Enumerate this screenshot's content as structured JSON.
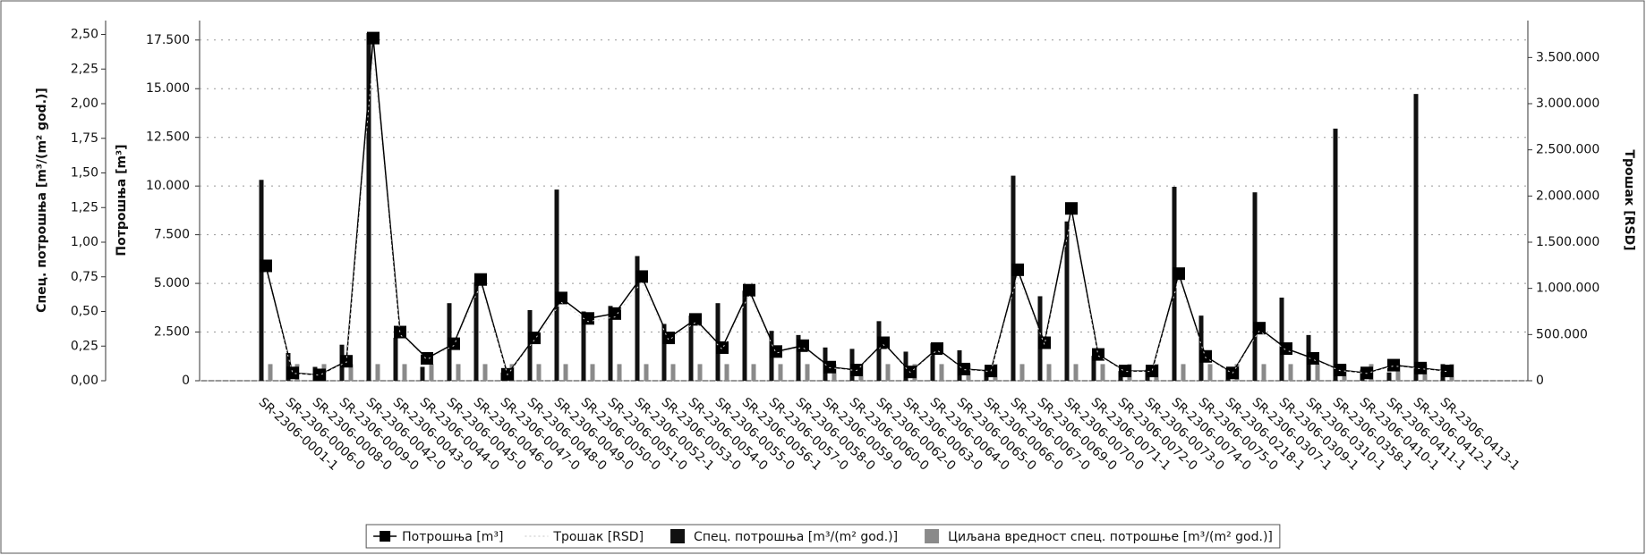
{
  "chart_data": {
    "type": "combo",
    "ylabel": "Потрошња [m³]",
    "y2label": "Трошак [RSD]",
    "y3label": "Спец. потрошња [m³/(m² god.)]",
    "categories": [
      "SR-2306-0001-1",
      "SR-2306-0006-0",
      "SR-2306-0008-0",
      "SR-2306-0009-0",
      "SR-2306-0042-0",
      "SR-2306-0043-0",
      "SR-2306-0044-0",
      "SR-2306-0045-0",
      "SR-2306-0046-0",
      "SR-2306-0047-0",
      "SR-2306-0048-0",
      "SR-2306-0049-0",
      "SR-2306-0050-0",
      "SR-2306-0051-0",
      "SR-2306-0052-1",
      "SR-2306-0053-0",
      "SR-2306-0054-0",
      "SR-2306-0055-0",
      "SR-2306-0056-1",
      "SR-2306-0057-0",
      "SR-2306-0058-0",
      "SR-2306-0059-0",
      "SR-2306-0060-0",
      "SR-2306-0062-0",
      "SR-2306-0063-0",
      "SR-2306-0064-0",
      "SR-2306-0065-0",
      "SR-2306-0066-0",
      "SR-2306-0067-0",
      "SR-2306-0069-0",
      "SR-2306-0070-0",
      "SR-2306-0071-1",
      "SR-2306-0072-0",
      "SR-2306-0073-0",
      "SR-2306-0074-0",
      "SR-2306-0075-0",
      "SR-2306-0218-1",
      "SR-2306-0307-1",
      "SR-2306-0309-1",
      "SR-2306-0310-1",
      "SR-2306-0358-1",
      "SR-2306-0410-1",
      "SR-2306-0411-1",
      "SR-2306-0412-1",
      "SR-2306-0413-1"
    ],
    "series": [
      {
        "name": "Потрошња [m³]",
        "color": "#000000",
        "style": "line",
        "axis": "y",
        "values": [
          5900,
          400,
          300,
          1000,
          17600,
          2500,
          1150,
          1900,
          5200,
          330,
          2200,
          4250,
          3200,
          3450,
          5350,
          2200,
          3150,
          1700,
          4650,
          1500,
          1800,
          700,
          550,
          1950,
          450,
          1650,
          600,
          500,
          5700,
          1950,
          8850,
          1350,
          500,
          500,
          5500,
          1250,
          400,
          2700,
          1650,
          1150,
          550,
          400,
          800,
          650,
          500
        ]
      },
      {
        "name": "Трошак [RSD]",
        "color": "#d8d8d8",
        "style": "line",
        "axis": "y2",
        "values": [
          1180000,
          80000,
          60000,
          200000,
          3520000,
          500000,
          230000,
          380000,
          1040000,
          66000,
          440000,
          850000,
          640000,
          690000,
          1070000,
          440000,
          630000,
          340000,
          930000,
          300000,
          360000,
          140000,
          110000,
          390000,
          90000,
          330000,
          120000,
          100000,
          1140000,
          390000,
          1770000,
          270000,
          100000,
          100000,
          1100000,
          250000,
          80000,
          540000,
          330000,
          230000,
          110000,
          80000,
          160000,
          130000,
          100000
        ]
      },
      {
        "name": "Спец. потрошња [m³/(m² god.)]",
        "color": "#111111",
        "style": "bar",
        "axis": "y3",
        "values": [
          1.45,
          0.2,
          0.1,
          0.26,
          2.51,
          0.31,
          0.1,
          0.56,
          0.71,
          0.06,
          0.51,
          1.38,
          0.5,
          0.54,
          0.9,
          0.41,
          0.47,
          0.56,
          0.65,
          0.36,
          0.33,
          0.24,
          0.23,
          0.43,
          0.21,
          0.27,
          0.22,
          0.08,
          1.48,
          0.61,
          1.15,
          0.18,
          0.07,
          0.08,
          1.4,
          0.47,
          0.08,
          1.36,
          0.6,
          0.33,
          1.82,
          0.08,
          0.06,
          2.07,
          0.12
        ]
      },
      {
        "name": "Циљана вредност спец. потрошње [m³/(m² god.)]",
        "color": "#8a8a8a",
        "style": "bar",
        "axis": "y3",
        "values": [
          0.12,
          0.12,
          0.12,
          0.12,
          0.12,
          0.12,
          0.12,
          0.12,
          0.12,
          0.12,
          0.12,
          0.12,
          0.12,
          0.12,
          0.12,
          0.12,
          0.12,
          0.12,
          0.12,
          0.12,
          0.12,
          0.12,
          0.12,
          0.12,
          0.12,
          0.12,
          0.12,
          0.12,
          0.12,
          0.12,
          0.12,
          0.12,
          0.12,
          0.12,
          0.12,
          0.12,
          0.12,
          0.12,
          0.12,
          0.12,
          0.12,
          0.12,
          0.12,
          0.12,
          0.12
        ]
      }
    ],
    "ylim": [
      0,
      18500
    ],
    "yticks": [
      0,
      {
        "value": 2500,
        "label": "2.500"
      },
      {
        "value": 5000,
        "label": "5.000"
      },
      {
        "value": 7500,
        "label": "7.500"
      },
      {
        "value": 10000,
        "label": "10.000"
      },
      {
        "value": 12500,
        "label": "12.500"
      },
      {
        "value": 15000,
        "label": "15.000"
      },
      {
        "value": 17500,
        "label": "17.500"
      }
    ],
    "y2lim": [
      0,
      3900000
    ],
    "y2ticks": [
      0,
      {
        "value": 500000,
        "label": "500.000"
      },
      {
        "value": 1000000,
        "label": "1.000.000"
      },
      {
        "value": 1500000,
        "label": "1.500.000"
      },
      {
        "value": 2000000,
        "label": "2.000.000"
      },
      {
        "value": 2500000,
        "label": "2.500.000"
      },
      {
        "value": 3000000,
        "label": "3.000.000"
      },
      {
        "value": 3500000,
        "label": "3.500.000"
      }
    ],
    "y3lim": [
      0,
      2.6
    ],
    "y3ticks": [
      {
        "value": 0,
        "label": "0,00"
      },
      {
        "value": 0.25,
        "label": "0,25"
      },
      {
        "value": 0.5,
        "label": "0,50"
      },
      {
        "value": 0.75,
        "label": "0,75"
      },
      {
        "value": 1,
        "label": "1,00"
      },
      {
        "value": 1.25,
        "label": "1,25"
      },
      {
        "value": 1.5,
        "label": "1,50"
      },
      {
        "value": 1.75,
        "label": "1,75"
      },
      {
        "value": 2,
        "label": "2,00"
      },
      {
        "value": 2.25,
        "label": "2,25"
      },
      {
        "value": 2.5,
        "label": "2,50"
      }
    ],
    "grid": true,
    "legend": "bottom"
  }
}
